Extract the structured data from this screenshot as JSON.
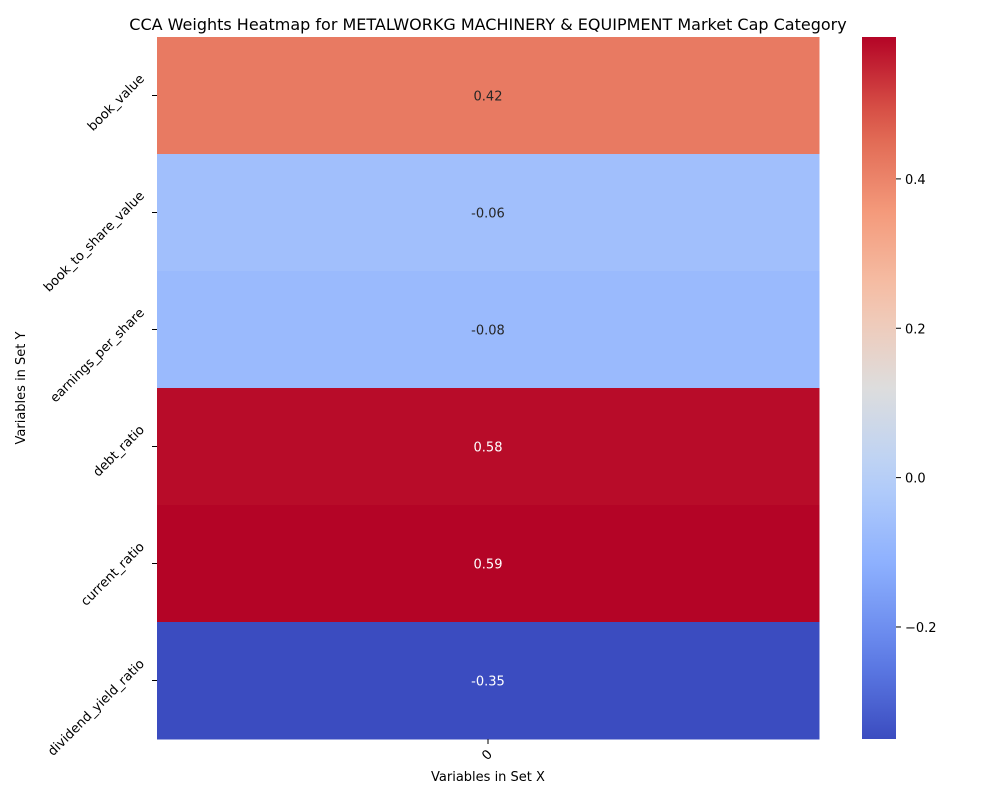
{
  "chart_data": {
    "type": "heatmap",
    "title": "CCA Weights Heatmap for METALWORKG MACHINERY & EQUIPMENT Market Cap Category",
    "xlabel": "Variables in Set X",
    "ylabel": "Variables in Set Y",
    "x_categories": [
      "0"
    ],
    "y_categories": [
      "book_value",
      "book_to_share_value",
      "earnings_per_share",
      "debt_ratio",
      "current_ratio",
      "dividend_yield_ratio"
    ],
    "values": [
      [
        0.42
      ],
      [
        -0.06
      ],
      [
        -0.08
      ],
      [
        0.58
      ],
      [
        0.59
      ],
      [
        -0.35
      ]
    ],
    "value_labels": [
      [
        "0.42"
      ],
      [
        "-0.06"
      ],
      [
        "-0.08"
      ],
      [
        "0.58"
      ],
      [
        "0.59"
      ],
      [
        "-0.35"
      ]
    ],
    "colormap": "coolwarm",
    "vmin": -0.35,
    "vmax": 0.59,
    "colorbar_ticks": [
      0.4,
      0.2,
      0.0,
      -0.2
    ],
    "colorbar_tick_labels": [
      "0.4",
      "0.2",
      "0.0",
      "−0.2"
    ]
  }
}
